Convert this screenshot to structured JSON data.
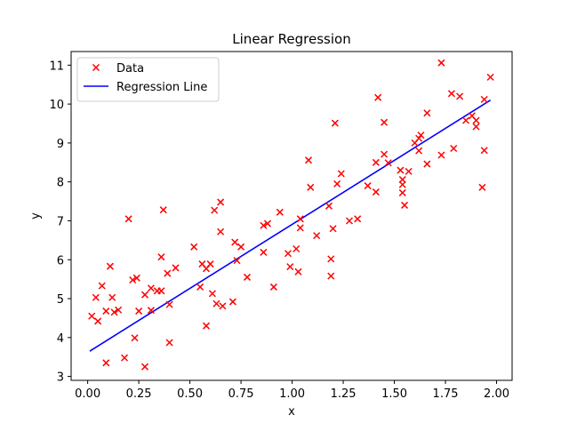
{
  "chart_data": {
    "type": "scatter",
    "title": "Linear Regression",
    "xlabel": "x",
    "ylabel": "y",
    "xlim": [
      -0.081,
      2.076
    ],
    "ylim": [
      2.9,
      11.35
    ],
    "xticks": [
      0.0,
      0.25,
      0.5,
      0.75,
      1.0,
      1.25,
      1.5,
      1.75,
      2.0
    ],
    "xtick_labels": [
      "0.00",
      "0.25",
      "0.50",
      "0.75",
      "1.00",
      "1.25",
      "1.50",
      "1.75",
      "2.00"
    ],
    "yticks": [
      3,
      4,
      5,
      6,
      7,
      8,
      9,
      10,
      11
    ],
    "ytick_labels": [
      "3",
      "4",
      "5",
      "6",
      "7",
      "8",
      "9",
      "10",
      "11"
    ],
    "grid": false,
    "legend_position": "top-left",
    "series": [
      {
        "name": "Data",
        "marker": "x",
        "color": "#ff0000",
        "points": [
          [
            0.02,
            4.55
          ],
          [
            0.04,
            5.03
          ],
          [
            0.05,
            4.42
          ],
          [
            0.07,
            5.33
          ],
          [
            0.09,
            4.68
          ],
          [
            0.09,
            3.35
          ],
          [
            0.11,
            5.83
          ],
          [
            0.12,
            5.03
          ],
          [
            0.13,
            4.65
          ],
          [
            0.15,
            4.71
          ],
          [
            0.18,
            3.48
          ],
          [
            0.2,
            7.05
          ],
          [
            0.22,
            5.48
          ],
          [
            0.23,
            3.99
          ],
          [
            0.24,
            5.53
          ],
          [
            0.25,
            4.68
          ],
          [
            0.28,
            5.1
          ],
          [
            0.28,
            3.25
          ],
          [
            0.31,
            5.27
          ],
          [
            0.31,
            4.7
          ],
          [
            0.34,
            5.2
          ],
          [
            0.36,
            5.2
          ],
          [
            0.36,
            6.07
          ],
          [
            0.37,
            7.28
          ],
          [
            0.39,
            5.65
          ],
          [
            0.4,
            4.85
          ],
          [
            0.4,
            3.87
          ],
          [
            0.43,
            5.79
          ],
          [
            0.52,
            6.33
          ],
          [
            0.55,
            5.3
          ],
          [
            0.56,
            5.89
          ],
          [
            0.58,
            5.77
          ],
          [
            0.58,
            4.3
          ],
          [
            0.6,
            5.89
          ],
          [
            0.61,
            5.13
          ],
          [
            0.62,
            7.27
          ],
          [
            0.63,
            4.87
          ],
          [
            0.65,
            7.48
          ],
          [
            0.65,
            6.72
          ],
          [
            0.66,
            4.81
          ],
          [
            0.71,
            4.92
          ],
          [
            0.72,
            6.45
          ],
          [
            0.73,
            5.98
          ],
          [
            0.75,
            6.33
          ],
          [
            0.78,
            5.55
          ],
          [
            0.86,
            6.88
          ],
          [
            0.86,
            6.19
          ],
          [
            0.88,
            6.93
          ],
          [
            0.91,
            5.3
          ],
          [
            0.94,
            7.22
          ],
          [
            0.98,
            6.16
          ],
          [
            0.99,
            5.82
          ],
          [
            1.02,
            6.28
          ],
          [
            1.03,
            5.69
          ],
          [
            1.04,
            7.05
          ],
          [
            1.04,
            6.82
          ],
          [
            1.08,
            8.56
          ],
          [
            1.09,
            7.86
          ],
          [
            1.12,
            6.62
          ],
          [
            1.18,
            7.38
          ],
          [
            1.19,
            6.02
          ],
          [
            1.19,
            5.58
          ],
          [
            1.2,
            6.8
          ],
          [
            1.21,
            9.51
          ],
          [
            1.22,
            7.95
          ],
          [
            1.24,
            8.21
          ],
          [
            1.28,
            7.0
          ],
          [
            1.32,
            7.05
          ],
          [
            1.37,
            7.9
          ],
          [
            1.41,
            7.74
          ],
          [
            1.41,
            8.5
          ],
          [
            1.42,
            10.17
          ],
          [
            1.45,
            9.53
          ],
          [
            1.45,
            8.71
          ],
          [
            1.47,
            8.49
          ],
          [
            1.53,
            8.3
          ],
          [
            1.54,
            7.93
          ],
          [
            1.54,
            8.06
          ],
          [
            1.54,
            7.72
          ],
          [
            1.55,
            7.4
          ],
          [
            1.57,
            8.27
          ],
          [
            1.6,
            9.0
          ],
          [
            1.62,
            8.8
          ],
          [
            1.62,
            9.12
          ],
          [
            1.63,
            9.2
          ],
          [
            1.66,
            9.77
          ],
          [
            1.66,
            8.46
          ],
          [
            1.73,
            11.06
          ],
          [
            1.73,
            8.69
          ],
          [
            1.78,
            10.27
          ],
          [
            1.79,
            8.86
          ],
          [
            1.82,
            10.2
          ],
          [
            1.85,
            9.58
          ],
          [
            1.88,
            9.7
          ],
          [
            1.9,
            9.58
          ],
          [
            1.9,
            9.42
          ],
          [
            1.93,
            7.86
          ],
          [
            1.94,
            10.12
          ],
          [
            1.94,
            8.81
          ],
          [
            1.97,
            10.69
          ]
        ]
      },
      {
        "name": "Regression Line",
        "type": "line",
        "color": "#0000ff",
        "x": [
          0.01,
          1.97
        ],
        "y": [
          3.65,
          10.1
        ]
      }
    ]
  }
}
